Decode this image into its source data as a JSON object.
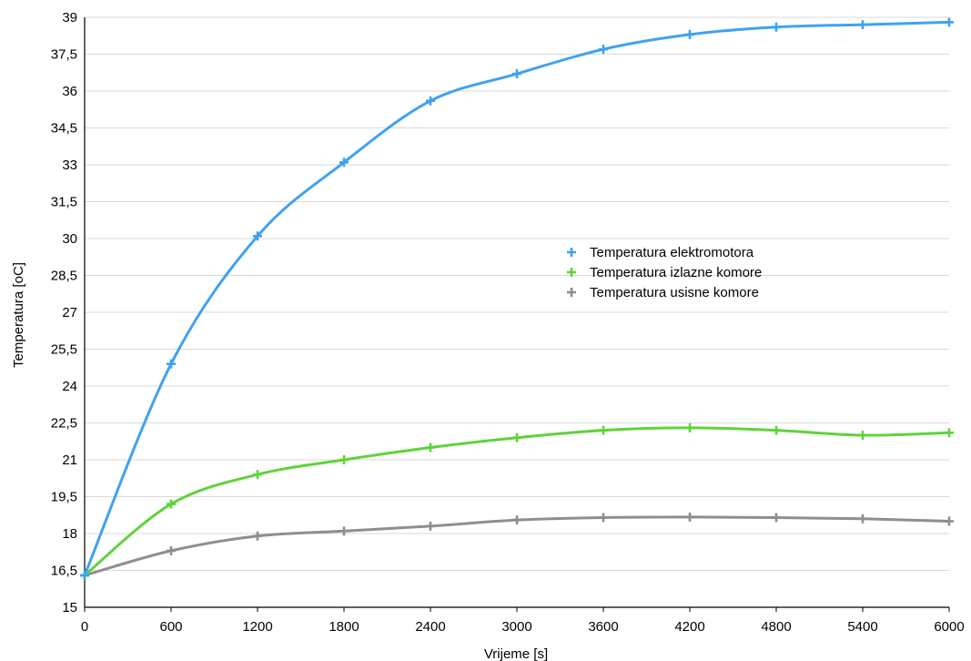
{
  "chart_data": {
    "type": "line",
    "title": "",
    "xlabel": "Vrijeme [s]",
    "ylabel": "Temperatura [oC]",
    "x": [
      0,
      600,
      1200,
      1800,
      2400,
      3000,
      3600,
      4200,
      4800,
      5400,
      6000
    ],
    "xticks": [
      "0",
      "600",
      "1200",
      "1800",
      "2400",
      "3000",
      "3600",
      "4200",
      "4800",
      "5400",
      "6000"
    ],
    "yticks": [
      "15",
      "16,5",
      "18",
      "19,5",
      "21",
      "22,5",
      "24",
      "25,5",
      "27",
      "28,5",
      "30",
      "31,5",
      "33",
      "34,5",
      "36",
      "37,5",
      "39"
    ],
    "xlim": [
      0,
      6000
    ],
    "ylim": [
      15,
      39
    ],
    "grid": "horizontal",
    "legend_position": "center-right",
    "series": [
      {
        "name": "Temperatura elektromotora",
        "color": "#3fa2f0",
        "values": [
          16.3,
          24.9,
          30.1,
          33.1,
          35.6,
          36.7,
          37.7,
          38.3,
          38.6,
          38.7,
          38.8
        ]
      },
      {
        "name": "Temperatura izlazne komore",
        "color": "#5ed33a",
        "values": [
          16.3,
          19.2,
          20.4,
          21.0,
          21.5,
          21.9,
          22.2,
          22.3,
          22.2,
          22.0,
          22.1
        ]
      },
      {
        "name": "Temperatura usisne komore",
        "color": "#8e8e8e",
        "values": [
          16.3,
          17.3,
          17.9,
          18.1,
          18.3,
          18.55,
          18.65,
          18.67,
          18.65,
          18.6,
          18.5
        ]
      }
    ]
  }
}
